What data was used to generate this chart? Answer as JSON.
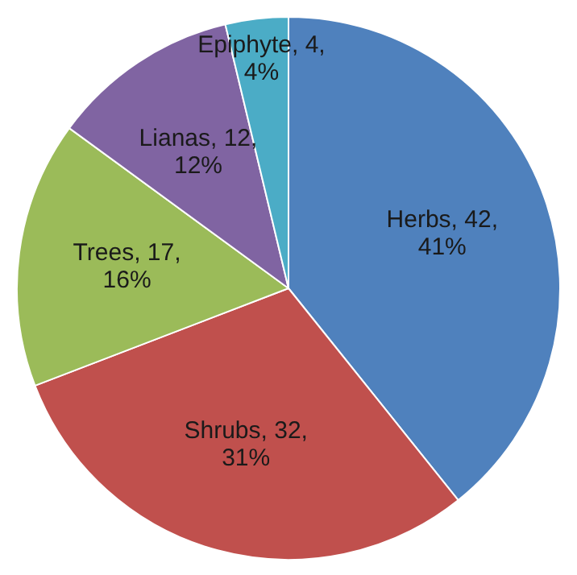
{
  "chart_data": {
    "type": "pie",
    "categories": [
      "Herbs",
      "Shrubs",
      "Trees",
      "Lianas",
      "Epiphyte"
    ],
    "values": [
      42,
      32,
      17,
      12,
      4
    ],
    "colors": [
      "#4f81bd",
      "#c0504d",
      "#9bbb59",
      "#8064a2",
      "#4bacc6"
    ],
    "value_labels": [
      "42, 41%",
      "32, 31%",
      "17, 16%",
      "12, 12%",
      "4, 4%"
    ],
    "legend": false
  }
}
